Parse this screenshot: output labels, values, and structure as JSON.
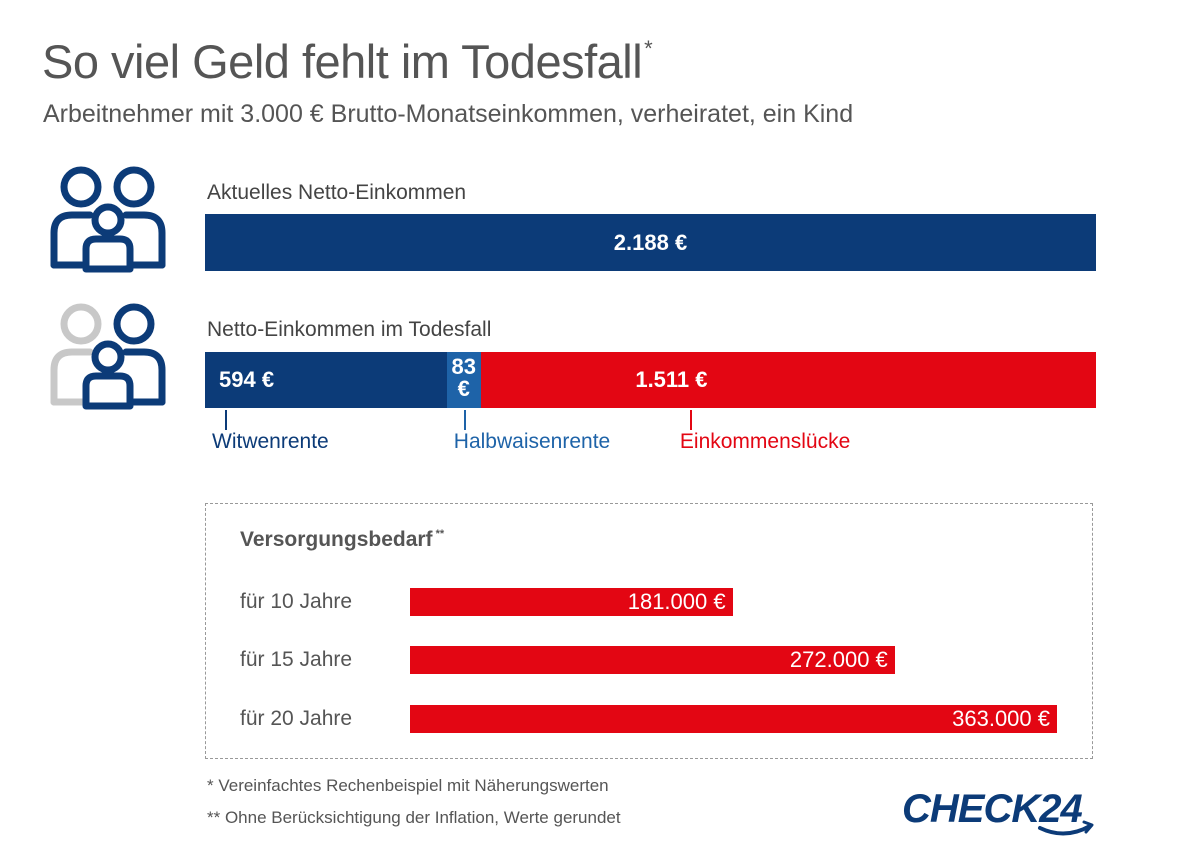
{
  "header": {
    "title": "So viel Geld fehlt im Todesfall",
    "title_mark": "*",
    "subtitle": "Arbeitnehmer mit 3.000 € Brutto-Monatseinkommen, verheiratet, ein Kind"
  },
  "colors": {
    "navy": "#0c3b78",
    "mid_blue": "#1e63a8",
    "red": "#e30613",
    "grey_icon": "#c8c8c8"
  },
  "icons": {
    "family_full": "family-three-persons-icon",
    "family_partial": "family-one-missing-icon"
  },
  "chart_data": [
    {
      "type": "bar",
      "orientation": "horizontal",
      "label": "Aktuelles Netto-Einkommen",
      "values": [
        2188
      ],
      "value_labels": [
        "2.188 €"
      ],
      "color": "#0c3b78"
    },
    {
      "type": "bar",
      "orientation": "horizontal",
      "stacked": true,
      "label": "Netto-Einkommen im Todesfall",
      "total": 2188,
      "series": [
        {
          "name": "Witwenrente",
          "value": 594,
          "value_label": "594 €",
          "color": "#0c3b78"
        },
        {
          "name": "Halbwaisenrente",
          "value": 83,
          "value_label": "83 €",
          "color": "#1e63a8"
        },
        {
          "name": "Einkommenslücke",
          "value": 1511,
          "value_label": "1.511 €",
          "color": "#e30613"
        }
      ]
    },
    {
      "type": "bar",
      "orientation": "horizontal",
      "title": "Versorgungsbedarf",
      "title_mark": "**",
      "categories": [
        "für 10 Jahre",
        "für 15 Jahre",
        "für 20 Jahre"
      ],
      "values": [
        181000,
        272000,
        363000
      ],
      "value_labels": [
        "181.000 €",
        "272.000 €",
        "363.000 €"
      ],
      "xlim": [
        0,
        363000
      ],
      "color": "#e30613"
    }
  ],
  "footnotes": [
    "* Vereinfachtes Rechenbeispiel mit Näherungswerten",
    "** Ohne Berücksichtigung der Inflation, Werte gerundet"
  ],
  "logo": {
    "text": "CHECK24"
  }
}
